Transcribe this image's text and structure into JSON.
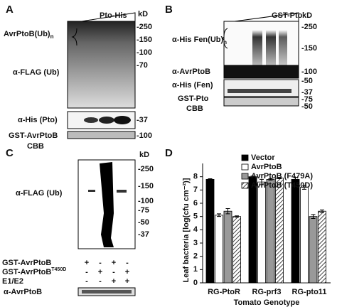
{
  "panel_a": {
    "letter": "A",
    "treatment": "Pto-His",
    "unit": "kD",
    "markers": [
      "-250",
      "-150",
      "-100",
      "-70"
    ],
    "ub_label": "AvrPtoB(Ub)",
    "ub_subscript": "n",
    "blot_label": "α-FLAG (Ub)",
    "pto_label": "α-His (Pto)",
    "pto_marker": "-37",
    "cbb_label": "GST-AvrPtoB",
    "cbb_sublabel": "CBB",
    "cbb_marker": "-100"
  },
  "panel_b": {
    "letter": "B",
    "treatment": "GST-Pto",
    "unit": "kD",
    "markers": [
      "-250",
      "-150"
    ],
    "ub_label": "α-His Fen(Ub)",
    "ub_subscript": "n",
    "avrptob_label": "α-AvrPtoB",
    "avrptob_marker": "-100",
    "fen_label": "α-His (Fen)",
    "fen_markers": [
      "-50",
      "-37"
    ],
    "cbb_label": "GST-Pto",
    "cbb_sublabel": "CBB",
    "cbb_markers": [
      "-75",
      "-50"
    ]
  },
  "panel_c": {
    "letter": "C",
    "unit": "kD",
    "markers": [
      "-250",
      "-150",
      "-100",
      "-75",
      "-50",
      "-37"
    ],
    "blot_label": "α-FLAG (Ub)",
    "rows": [
      {
        "label": "GST-AvrPtoB",
        "signs": [
          "+",
          "-",
          "+",
          "-"
        ]
      },
      {
        "label": "GST-AvrPtoB",
        "superscript": "T450D",
        "signs": [
          "-",
          "+",
          "-",
          "+"
        ]
      },
      {
        "label": "E1/E2",
        "signs": [
          "-",
          "-",
          "+",
          "+"
        ]
      }
    ],
    "bottom_label": "α-AvrPtoB"
  },
  "chart_data": {
    "type": "bar",
    "panel_label": "D",
    "y_label": "Leaf bacteria [log(cfu cm⁻²)]",
    "x_label": "Tomato Genotype",
    "categories": [
      "RG-PtoR",
      "RG-prf3",
      "RG-pto11"
    ],
    "series": [
      {
        "name": "Vector",
        "color": "#000000",
        "values": [
          7.8,
          8.0,
          7.8
        ],
        "errors": [
          0.05,
          0.05,
          0.15
        ]
      },
      {
        "name": "AvrPtoB",
        "color": "#ffffff",
        "values": [
          5.1,
          7.6,
          7.2
        ],
        "errors": [
          0.1,
          0.2,
          0.15
        ]
      },
      {
        "name": "AvrPtoB (F479A)",
        "color": "#999999",
        "values": [
          5.4,
          7.8,
          5.0
        ],
        "errors": [
          0.2,
          0.05,
          0.15
        ]
      },
      {
        "name": "AvrPtoB (T450D)",
        "color": "#444444",
        "pattern": "hatch",
        "values": [
          5.0,
          7.9,
          5.4
        ],
        "errors": [
          0.05,
          0.05,
          0.1
        ]
      }
    ],
    "ylim": [
      0,
      9
    ],
    "yticks": [
      0,
      1,
      2,
      3,
      4,
      5,
      6,
      7,
      8
    ],
    "legend": "top-right"
  }
}
